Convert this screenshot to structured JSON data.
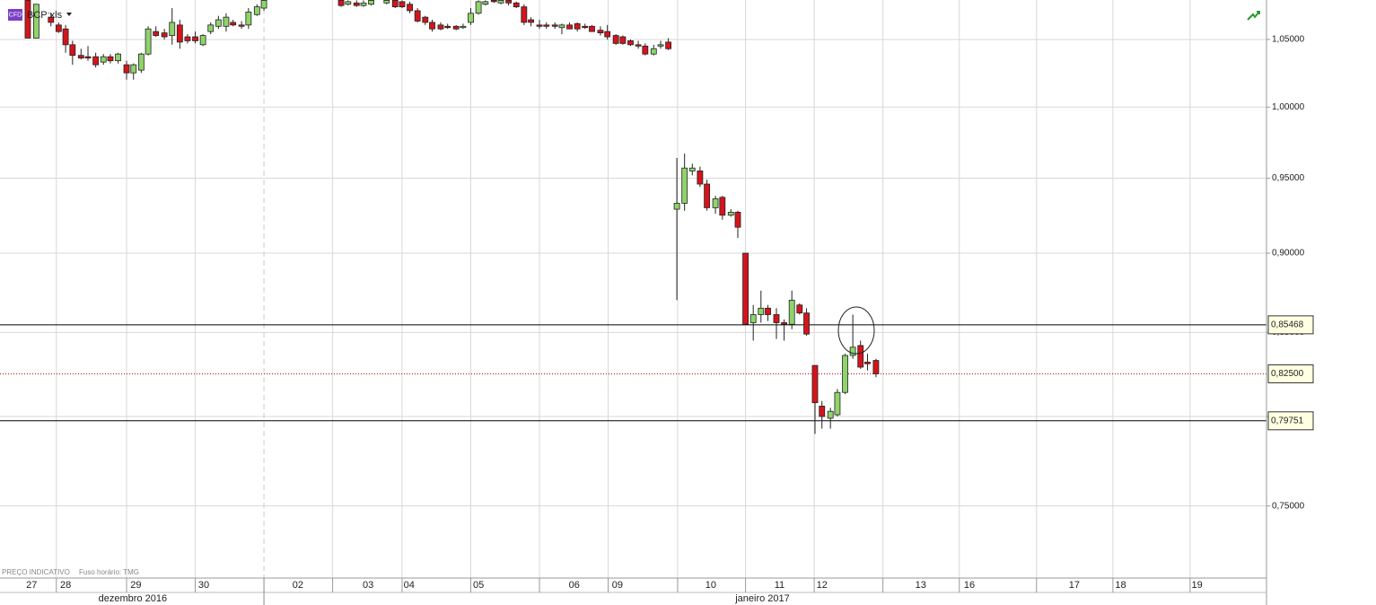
{
  "chart_data": {
    "type": "candlestick",
    "title": "BCP:xls",
    "badge": "CFD",
    "notes": [
      "PREÇO INDICATIVO",
      "Fuso horário: TMG"
    ],
    "log_y": true,
    "ylim": [
      0.712,
      1.0803
    ],
    "yticks": [
      {
        "value": 1.05,
        "label": "1,05000"
      },
      {
        "value": 1.0,
        "label": "1,00000"
      },
      {
        "value": 0.95,
        "label": "0,95000"
      },
      {
        "value": 0.9,
        "label": "0,90000"
      },
      {
        "value": 0.85,
        "label": "0,85000"
      },
      {
        "value": 0.8,
        "label": "0,80000"
      },
      {
        "value": 0.75,
        "label": "0,75000"
      }
    ],
    "xlim": [
      0,
      164.1
    ],
    "xticks": [
      {
        "value": 4.1,
        "label": "27"
      },
      {
        "value": 8.5,
        "label": "28"
      },
      {
        "value": 17.6,
        "label": "29"
      },
      {
        "value": 26.4,
        "label": "30"
      },
      {
        "value": 38.6,
        "label": "02"
      },
      {
        "value": 47.7,
        "label": "03"
      },
      {
        "value": 53.0,
        "label": "04"
      },
      {
        "value": 62.0,
        "label": "05"
      },
      {
        "value": 74.4,
        "label": "06"
      },
      {
        "value": 80.0,
        "label": "09"
      },
      {
        "value": 92.1,
        "label": "10"
      },
      {
        "value": 101.0,
        "label": "11"
      },
      {
        "value": 106.5,
        "label": "12"
      },
      {
        "value": 119.3,
        "label": "13"
      },
      {
        "value": 125.6,
        "label": "16"
      },
      {
        "value": 139.2,
        "label": "17"
      },
      {
        "value": 145.2,
        "label": "18"
      },
      {
        "value": 155.1,
        "label": "19"
      }
    ],
    "xgrid": [
      7.3,
      16.4,
      25.3,
      43.1,
      52.1,
      61.0,
      69.9,
      78.8,
      87.8,
      96.6,
      105.5,
      114.4,
      124.3,
      134.3,
      144.2,
      154.2
    ],
    "month_divider": 34.2,
    "months": [
      {
        "value": 17.2,
        "label": "dezembro 2016"
      },
      {
        "value": 98.8,
        "label": "janeiro 2017"
      }
    ],
    "up_color": "#8ed36b",
    "down_color": "#d4141c",
    "grid": true,
    "levels": [
      {
        "value": 0.85468,
        "label": "0,85468",
        "color": "#000000",
        "style": "solid"
      },
      {
        "value": 0.825,
        "label": "0,82500",
        "color": "#c00000",
        "style": "dotted"
      },
      {
        "value": 0.79751,
        "label": "0,79751",
        "color": "#000000",
        "style": "solid"
      }
    ],
    "x": [
      3.6,
      4.7,
      6.6,
      7.6,
      8.5,
      9.4,
      10.5,
      11.4,
      12.4,
      13.4,
      14.3,
      15.3,
      16.4,
      17.3,
      18.3,
      19.2,
      20.2,
      21.3,
      22.3,
      23.3,
      24.3,
      25.3,
      26.3,
      27.3,
      28.3,
      29.3,
      30.2,
      31.3,
      32.2,
      33.3,
      34.2,
      44.2,
      45.1,
      46.2,
      47.1,
      48.1,
      50.1,
      51.2,
      52.1,
      53.1,
      54.1,
      55.1,
      56.0,
      57.1,
      58.0,
      59.1,
      60.0,
      61.0,
      62.0,
      62.9,
      64.0,
      64.9,
      65.9,
      66.9,
      67.9,
      68.8,
      69.9,
      70.8,
      71.9,
      72.8,
      73.8,
      74.8,
      75.8,
      76.7,
      77.8,
      78.7,
      79.8,
      80.7,
      81.7,
      82.7,
      83.6,
      84.7,
      85.6,
      86.6,
      87.7,
      88.7,
      89.7,
      90.7,
      91.6,
      92.7,
      93.6,
      94.7,
      95.6,
      96.6,
      97.6,
      98.6,
      99.5,
      100.6,
      101.6,
      102.6,
      103.6,
      104.5,
      105.6,
      106.5,
      107.6,
      108.5,
      109.5,
      110.5,
      111.5,
      112.4,
      113.5
    ],
    "open": [
      1.08,
      1.051,
      1.067,
      1.061,
      1.058,
      1.046,
      1.038,
      1.037,
      1.037,
      1.033,
      1.037,
      1.034,
      1.031,
      1.025,
      1.027,
      1.039,
      1.056,
      1.055,
      1.053,
      1.061,
      1.052,
      1.052,
      1.046,
      1.056,
      1.06,
      1.06,
      1.063,
      1.061,
      1.061,
      1.069,
      1.074,
      1.08,
      1.077,
      1.078,
      1.076,
      1.077,
      1.078,
      1.08,
      1.079,
      1.077,
      1.072,
      1.067,
      1.063,
      1.061,
      1.06,
      1.06,
      1.059,
      1.063,
      1.07,
      1.077,
      1.08,
      1.078,
      1.08,
      1.078,
      1.075,
      1.065,
      1.061,
      1.061,
      1.061,
      1.059,
      1.061,
      1.062,
      1.06,
      1.06,
      1.057,
      1.056,
      1.053,
      1.052,
      1.049,
      1.046,
      1.045,
      1.039,
      1.045,
      1.048,
      0.929,
      0.933,
      0.955,
      0.955,
      0.946,
      0.93,
      0.937,
      0.925,
      0.927,
      0.9,
      0.856,
      0.861,
      0.865,
      0.861,
      0.856,
      0.855,
      0.867,
      0.862,
      0.83,
      0.806,
      0.799,
      0.801,
      0.814,
      0.836,
      0.842,
      0.832,
      0.833
    ],
    "high": [
      1.08,
      1.077,
      1.07,
      1.063,
      1.061,
      1.049,
      1.043,
      1.045,
      1.04,
      1.039,
      1.039,
      1.04,
      1.034,
      1.032,
      1.04,
      1.06,
      1.06,
      1.058,
      1.074,
      1.065,
      1.054,
      1.056,
      1.054,
      1.063,
      1.068,
      1.07,
      1.065,
      1.064,
      1.074,
      1.077,
      1.08,
      1.08,
      1.08,
      1.08,
      1.08,
      1.08,
      1.08,
      1.08,
      1.08,
      1.079,
      1.074,
      1.068,
      1.065,
      1.063,
      1.062,
      1.061,
      1.062,
      1.074,
      1.08,
      1.08,
      1.08,
      1.08,
      1.08,
      1.079,
      1.077,
      1.067,
      1.065,
      1.063,
      1.063,
      1.062,
      1.063,
      1.063,
      1.062,
      1.061,
      1.06,
      1.061,
      1.054,
      1.053,
      1.05,
      1.049,
      1.047,
      1.046,
      1.049,
      1.051,
      0.964,
      0.967,
      0.96,
      0.958,
      0.949,
      0.938,
      0.938,
      0.929,
      0.928,
      0.9,
      0.867,
      0.876,
      0.867,
      0.865,
      0.858,
      0.876,
      0.868,
      0.865,
      0.83,
      0.809,
      0.805,
      0.816,
      0.837,
      0.861,
      0.845,
      0.837,
      0.834
    ],
    "low": [
      1.051,
      1.051,
      1.06,
      1.055,
      1.04,
      1.031,
      1.035,
      1.034,
      1.029,
      1.031,
      1.032,
      1.032,
      1.02,
      1.02,
      1.025,
      1.038,
      1.052,
      1.05,
      1.046,
      1.043,
      1.047,
      1.047,
      1.045,
      1.054,
      1.058,
      1.056,
      1.06,
      1.058,
      1.058,
      1.068,
      1.072,
      1.075,
      1.076,
      1.075,
      1.075,
      1.076,
      1.077,
      1.074,
      1.074,
      1.07,
      1.063,
      1.061,
      1.056,
      1.057,
      1.058,
      1.057,
      1.058,
      1.061,
      1.069,
      1.076,
      1.078,
      1.077,
      1.076,
      1.074,
      1.061,
      1.06,
      1.058,
      1.058,
      1.058,
      1.054,
      1.058,
      1.056,
      1.058,
      1.056,
      1.053,
      1.05,
      1.046,
      1.046,
      1.045,
      1.043,
      1.038,
      1.038,
      1.043,
      1.042,
      0.87,
      0.928,
      0.952,
      0.944,
      0.928,
      0.926,
      0.922,
      0.924,
      0.91,
      0.855,
      0.845,
      0.856,
      0.857,
      0.846,
      0.845,
      0.852,
      0.861,
      0.848,
      0.79,
      0.793,
      0.793,
      0.8,
      0.813,
      0.834,
      0.828,
      0.827,
      0.823
    ],
    "close": [
      1.051,
      1.077,
      1.063,
      1.056,
      1.046,
      1.038,
      1.036,
      1.036,
      1.031,
      1.037,
      1.034,
      1.039,
      1.025,
      1.031,
      1.039,
      1.058,
      1.053,
      1.052,
      1.063,
      1.048,
      1.049,
      1.049,
      1.053,
      1.061,
      1.065,
      1.067,
      1.061,
      1.06,
      1.071,
      1.075,
      1.08,
      1.076,
      1.079,
      1.076,
      1.078,
      1.08,
      1.08,
      1.075,
      1.075,
      1.072,
      1.064,
      1.063,
      1.058,
      1.058,
      1.059,
      1.058,
      1.06,
      1.07,
      1.079,
      1.079,
      1.079,
      1.08,
      1.078,
      1.075,
      1.063,
      1.063,
      1.06,
      1.06,
      1.06,
      1.061,
      1.058,
      1.058,
      1.059,
      1.056,
      1.055,
      1.052,
      1.047,
      1.047,
      1.046,
      1.045,
      1.039,
      1.043,
      1.046,
      1.043,
      0.933,
      0.957,
      0.957,
      0.946,
      0.93,
      0.936,
      0.925,
      0.927,
      0.917,
      0.855,
      0.861,
      0.865,
      0.861,
      0.856,
      0.855,
      0.87,
      0.862,
      0.849,
      0.808,
      0.8,
      0.803,
      0.814,
      0.836,
      0.841,
      0.829,
      0.831,
      0.825
    ]
  }
}
